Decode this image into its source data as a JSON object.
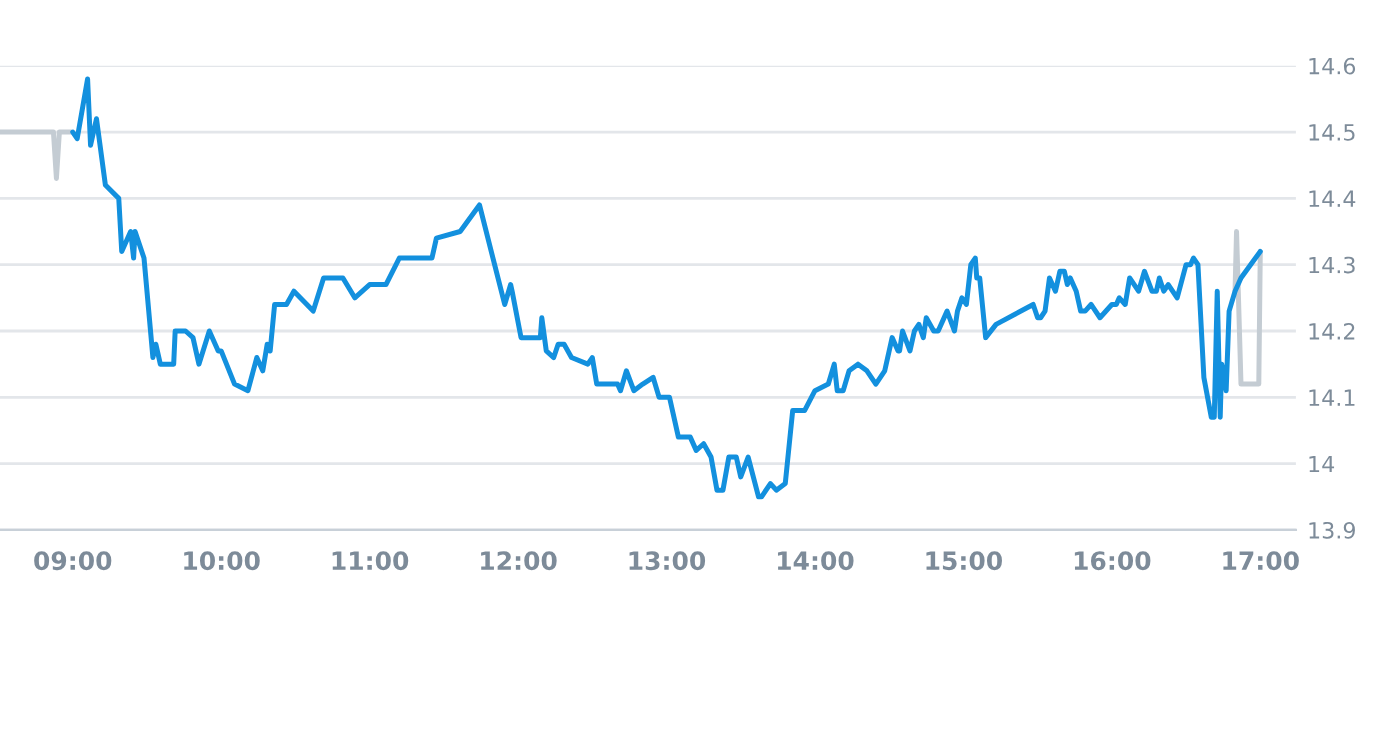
{
  "chart_data": {
    "type": "line",
    "xlim": [
      8.51,
      17.24
    ],
    "ylim": [
      13.9,
      14.6
    ],
    "xticks": [
      {
        "value": 9,
        "label": "09:00"
      },
      {
        "value": 10,
        "label": "10:00"
      },
      {
        "value": 11,
        "label": "11:00"
      },
      {
        "value": 12,
        "label": "12:00"
      },
      {
        "value": 13,
        "label": "13:00"
      },
      {
        "value": 14,
        "label": "14:00"
      },
      {
        "value": 15,
        "label": "15:00"
      },
      {
        "value": 16,
        "label": "16:00"
      },
      {
        "value": 17,
        "label": "17:00"
      }
    ],
    "yticks": [
      13.9,
      14,
      14.1,
      14.2,
      14.3,
      14.4,
      14.5,
      14.6
    ],
    "grid": "y",
    "line_style": "solid",
    "marker": "none",
    "series": [
      {
        "color": "#c4ccd3",
        "x": [
          8.51,
          8.87,
          8.89,
          8.91,
          8.99
        ],
        "values": [
          14.5,
          14.5,
          14.43,
          14.5,
          14.5
        ]
      },
      {
        "color": "#c4ccd3",
        "x": [
          16.83,
          16.84,
          16.87,
          16.99,
          17.0
        ],
        "values": [
          14.26,
          14.35,
          14.12,
          14.12,
          14.32
        ]
      },
      {
        "color": "#1390de",
        "x": [
          9.0,
          9.03,
          9.1,
          9.12,
          9.16,
          9.22,
          9.31,
          9.33,
          9.39,
          9.41,
          9.42,
          9.48,
          9.54,
          9.56,
          9.59,
          9.68,
          9.69,
          9.76,
          9.81,
          9.85,
          9.92,
          9.98,
          10.0,
          10.09,
          10.18,
          10.24,
          10.28,
          10.31,
          10.33,
          10.36,
          10.44,
          10.49,
          10.62,
          10.69,
          10.82,
          10.9,
          11.0,
          11.11,
          11.2,
          11.42,
          11.45,
          11.61,
          11.74,
          11.91,
          11.95,
          11.96,
          12.02,
          12.03,
          12.15,
          12.16,
          12.19,
          12.24,
          12.27,
          12.31,
          12.36,
          12.47,
          12.5,
          12.53,
          12.67,
          12.69,
          12.73,
          12.78,
          12.84,
          12.91,
          12.95,
          13.02,
          13.08,
          13.16,
          13.2,
          13.25,
          13.3,
          13.34,
          13.38,
          13.42,
          13.47,
          13.5,
          13.55,
          13.62,
          13.64,
          13.7,
          13.74,
          13.8,
          13.85,
          13.93,
          14.0,
          14.09,
          14.13,
          14.15,
          14.19,
          14.23,
          14.29,
          14.35,
          14.41,
          14.47,
          14.52,
          14.56,
          14.57,
          14.59,
          14.64,
          14.67,
          14.7,
          14.73,
          14.75,
          14.8,
          14.83,
          14.89,
          14.94,
          14.96,
          14.99,
          15.02,
          15.05,
          15.08,
          15.09,
          15.11,
          15.15,
          15.22,
          15.47,
          15.5,
          15.52,
          15.55,
          15.58,
          15.62,
          15.65,
          15.68,
          15.7,
          15.72,
          15.76,
          15.79,
          15.82,
          15.86,
          15.92,
          16.0,
          16.03,
          16.05,
          16.09,
          16.12,
          16.18,
          16.22,
          16.27,
          16.3,
          16.32,
          16.35,
          16.38,
          16.44,
          16.5,
          16.53,
          16.55,
          16.58,
          16.62,
          16.67,
          16.69,
          16.71,
          16.73,
          16.74,
          16.76,
          16.77,
          16.79,
          16.83,
          16.87,
          17.0
        ],
        "values": [
          14.5,
          14.49,
          14.58,
          14.48,
          14.52,
          14.42,
          14.4,
          14.32,
          14.35,
          14.31,
          14.35,
          14.31,
          14.16,
          14.18,
          14.15,
          14.15,
          14.2,
          14.2,
          14.19,
          14.15,
          14.2,
          14.17,
          14.17,
          14.12,
          14.11,
          14.16,
          14.14,
          14.18,
          14.17,
          14.24,
          14.24,
          14.26,
          14.23,
          14.28,
          14.28,
          14.25,
          14.27,
          14.27,
          14.31,
          14.31,
          14.34,
          14.35,
          14.39,
          14.24,
          14.27,
          14.26,
          14.19,
          14.19,
          14.19,
          14.22,
          14.17,
          14.16,
          14.18,
          14.18,
          14.16,
          14.15,
          14.16,
          14.12,
          14.12,
          14.11,
          14.14,
          14.11,
          14.12,
          14.13,
          14.1,
          14.1,
          14.04,
          14.04,
          14.02,
          14.03,
          14.01,
          13.96,
          13.96,
          14.01,
          14.01,
          13.98,
          14.01,
          13.95,
          13.95,
          13.97,
          13.96,
          13.97,
          14.08,
          14.08,
          14.11,
          14.12,
          14.15,
          14.11,
          14.11,
          14.14,
          14.15,
          14.14,
          14.12,
          14.14,
          14.19,
          14.17,
          14.17,
          14.2,
          14.17,
          14.2,
          14.21,
          14.19,
          14.22,
          14.2,
          14.2,
          14.23,
          14.2,
          14.23,
          14.25,
          14.24,
          14.3,
          14.31,
          14.28,
          14.28,
          14.19,
          14.21,
          14.24,
          14.22,
          14.22,
          14.23,
          14.28,
          14.26,
          14.29,
          14.29,
          14.27,
          14.28,
          14.26,
          14.23,
          14.23,
          14.24,
          14.22,
          14.24,
          14.24,
          14.25,
          14.24,
          14.28,
          14.26,
          14.29,
          14.26,
          14.26,
          14.28,
          14.26,
          14.27,
          14.25,
          14.3,
          14.3,
          14.31,
          14.3,
          14.13,
          14.07,
          14.07,
          14.26,
          14.07,
          14.15,
          14.13,
          14.11,
          14.23,
          14.26,
          14.28,
          14.32
        ]
      }
    ]
  }
}
